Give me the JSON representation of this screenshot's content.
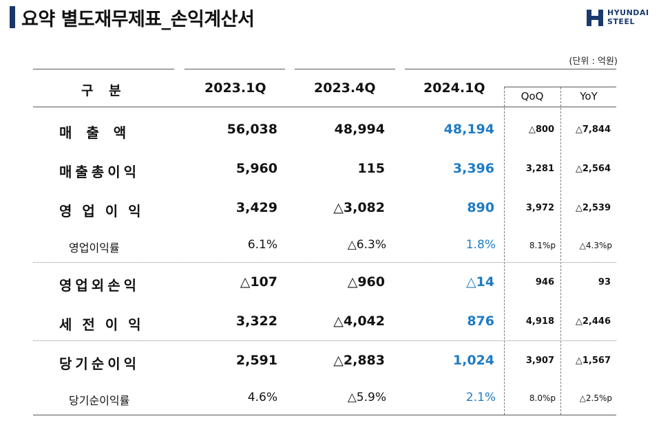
{
  "title": "요약 별도재무제표_손익계산서",
  "logo": {
    "line1": "HYUNDAI",
    "line2": "STEEL"
  },
  "unit": "(단위 : 억원)",
  "header": {
    "category": "구 분",
    "col1": "2023.1Q",
    "col2": "2023.4Q",
    "col3": "2024.1Q",
    "qoq": "QoQ",
    "yoy": "YoY"
  },
  "rows": [
    {
      "label": "매 출 액",
      "q1": "56,038",
      "q2": "48,994",
      "q3": "48,194",
      "qoq": "△800",
      "yoy": "△7,844"
    },
    {
      "label": "매출총이익",
      "q1": "5,960",
      "q2": "115",
      "q3": "3,396",
      "qoq": "3,281",
      "yoy": "△2,564"
    },
    {
      "label": "영 업 이 익",
      "q1": "3,429",
      "q2": "△3,082",
      "q3": "890",
      "qoq": "3,972",
      "yoy": "△2,539"
    },
    {
      "label": "영업이익률",
      "q1": "6.1%",
      "q2": "△6.3%",
      "q3": "1.8%",
      "qoq": "8.1%p",
      "yoy": "△4.3%p"
    },
    {
      "label": "영업외손익",
      "q1": "△107",
      "q2": "△960",
      "q3": "△14",
      "qoq": "946",
      "yoy": "93"
    },
    {
      "label": "세 전 이 익",
      "q1": "3,322",
      "q2": "△4,042",
      "q3": "876",
      "qoq": "4,918",
      "yoy": "△2,446"
    },
    {
      "label": "당기순이익",
      "q1": "2,591",
      "q2": "△2,883",
      "q3": "1,024",
      "qoq": "3,907",
      "yoy": "△1,567"
    },
    {
      "label": "당기순이익률",
      "q1": "4.6%",
      "q2": "△5.9%",
      "q3": "2.1%",
      "qoq": "8.0%p",
      "yoy": "△2.5%p"
    }
  ],
  "colors": {
    "highlight": "#1e7bc4",
    "title_bar": "#1a3564",
    "logo": "#1a3a6e"
  }
}
